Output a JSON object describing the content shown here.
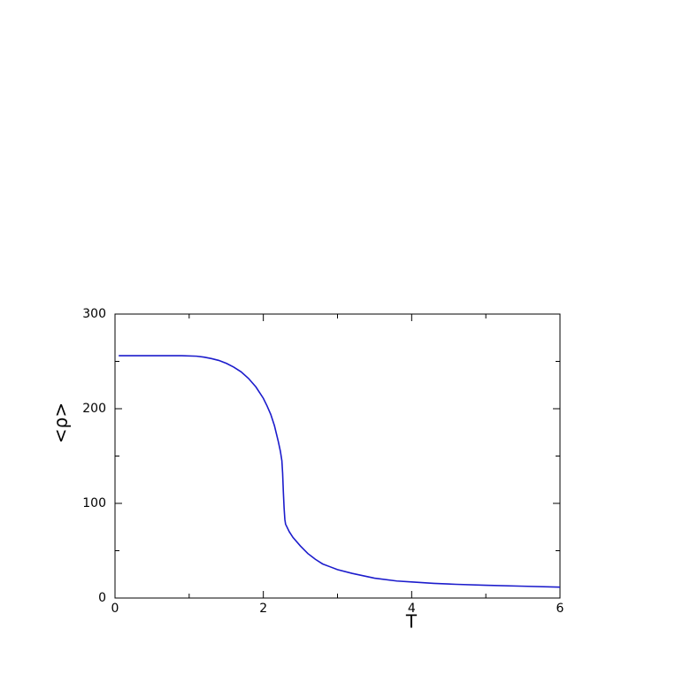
{
  "chart_data": {
    "type": "line",
    "x_label": "T",
    "y_label": "<ρ>",
    "x": [
      0.05,
      0.3,
      0.6,
      0.9,
      1.1,
      1.2,
      1.3,
      1.4,
      1.5,
      1.6,
      1.7,
      1.8,
      1.9,
      2.0,
      2.05,
      2.1,
      2.15,
      2.2,
      2.23,
      2.25,
      2.26,
      2.27,
      2.28,
      2.29,
      2.3,
      2.35,
      2.4,
      2.5,
      2.6,
      2.65,
      2.7,
      2.8,
      2.9,
      3.0,
      3.2,
      3.5,
      3.8,
      4.0,
      4.3,
      4.6,
      5.0,
      5.5,
      6.0
    ],
    "series": [
      {
        "color": "#1c1ccc",
        "values": [
          256,
          256,
          256,
          256,
          255.5,
          254.5,
          253,
          251,
          248,
          244,
          239,
          232,
          223,
          211,
          203,
          194,
          182,
          166,
          155,
          145,
          132,
          112,
          95,
          83,
          78,
          70,
          64,
          55,
          47,
          44,
          41,
          36,
          33,
          30,
          26,
          21,
          18,
          17,
          15.5,
          14.5,
          13.5,
          12.5,
          11.5
        ]
      }
    ],
    "xlim": [
      0,
      6
    ],
    "xticks": [
      0,
      2,
      4,
      6
    ],
    "xminor_ticks": [
      1,
      3,
      5
    ],
    "ylim": [
      0,
      300
    ],
    "yticks": [
      0,
      100,
      200,
      300
    ],
    "yminor_ticks": [
      50,
      150,
      250
    ],
    "grid": false
  }
}
